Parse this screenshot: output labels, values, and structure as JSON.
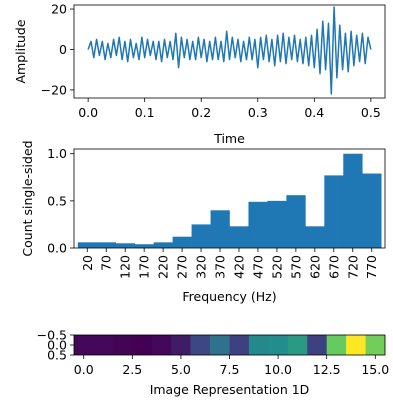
{
  "colors": {
    "line": "#1f77b4",
    "bar": "#1f77b4",
    "axis": "#000000"
  },
  "chart_data": [
    {
      "type": "line",
      "xlabel": "Time",
      "ylabel": "Amplitude",
      "xlim": [
        -0.025,
        0.525
      ],
      "ylim": [
        -24,
        22
      ],
      "xticks": [
        0.0,
        0.1,
        0.2,
        0.3,
        0.4,
        0.5
      ],
      "xtick_labels": [
        "0.0",
        "0.1",
        "0.2",
        "0.3",
        "0.4",
        "0.5"
      ],
      "yticks": [
        -20,
        0,
        20
      ],
      "ytick_labels": [
        "−20",
        "0",
        "20"
      ],
      "series": [
        {
          "x": [
            0.0,
            0.005,
            0.01,
            0.015,
            0.02,
            0.025,
            0.03,
            0.035,
            0.04,
            0.045,
            0.05,
            0.055,
            0.06,
            0.065,
            0.07,
            0.075,
            0.08,
            0.085,
            0.09,
            0.095,
            0.1,
            0.105,
            0.11,
            0.115,
            0.12,
            0.125,
            0.13,
            0.135,
            0.14,
            0.145,
            0.15,
            0.155,
            0.16,
            0.165,
            0.17,
            0.175,
            0.18,
            0.185,
            0.19,
            0.195,
            0.2,
            0.205,
            0.21,
            0.215,
            0.22,
            0.225,
            0.23,
            0.235,
            0.24,
            0.245,
            0.25,
            0.255,
            0.26,
            0.265,
            0.27,
            0.275,
            0.28,
            0.285,
            0.29,
            0.295,
            0.3,
            0.305,
            0.31,
            0.315,
            0.32,
            0.325,
            0.33,
            0.335,
            0.34,
            0.345,
            0.35,
            0.355,
            0.36,
            0.365,
            0.37,
            0.375,
            0.38,
            0.385,
            0.39,
            0.395,
            0.4,
            0.405,
            0.41,
            0.415,
            0.42,
            0.425,
            0.43,
            0.435,
            0.44,
            0.445,
            0.45,
            0.455,
            0.46,
            0.465,
            0.47,
            0.475,
            0.48,
            0.485,
            0.49,
            0.495,
            0.5
          ],
          "y": [
            0,
            4,
            -4,
            5,
            -3,
            4,
            -5,
            3,
            -4,
            5,
            -3,
            6,
            -5,
            4,
            -6,
            5,
            -4,
            3,
            -5,
            6,
            -4,
            5,
            -3,
            4,
            -5,
            4,
            -6,
            5,
            -4,
            4,
            -5,
            8,
            -9,
            6,
            -4,
            5,
            -5,
            4,
            -5,
            6,
            -4,
            5,
            -6,
            4,
            -5,
            6,
            -5,
            4,
            -6,
            9,
            -5,
            6,
            -4,
            5,
            -6,
            4,
            -5,
            6,
            -5,
            5,
            -9,
            6,
            -5,
            7,
            -6,
            5,
            -8,
            7,
            -6,
            8,
            -7,
            6,
            -5,
            7,
            -6,
            5,
            -7,
            6,
            -8,
            7,
            -9,
            10,
            -12,
            14,
            -10,
            13,
            -22,
            21,
            -14,
            12,
            -10,
            8,
            -11,
            9,
            -8,
            7,
            -6,
            8,
            -7,
            6,
            0
          ]
        }
      ]
    },
    {
      "type": "bar",
      "xlabel": "Frequency (Hz)",
      "ylabel": "Count single-sided",
      "ylim": [
        0,
        1.05
      ],
      "yticks": [
        0.0,
        0.5,
        1.0
      ],
      "ytick_labels": [
        "0.0",
        "0.5",
        "1.0"
      ],
      "categories": [
        "20",
        "70",
        "120",
        "170",
        "220",
        "270",
        "320",
        "370",
        "420",
        "470",
        "520",
        "570",
        "620",
        "670",
        "720",
        "770"
      ],
      "values": [
        0.06,
        0.06,
        0.05,
        0.04,
        0.06,
        0.12,
        0.25,
        0.4,
        0.23,
        0.49,
        0.5,
        0.56,
        0.23,
        0.77,
        1.0,
        0.79
      ]
    },
    {
      "type": "heatmap",
      "xlabel": "Image Representation 1D",
      "xlim": [
        -0.5,
        15.5
      ],
      "xticks": [
        0.0,
        2.5,
        5.0,
        7.5,
        10.0,
        12.5,
        15.0
      ],
      "xtick_labels": [
        "0.0",
        "2.5",
        "5.0",
        "7.5",
        "10.0",
        "12.5",
        "15.0"
      ],
      "ylim": [
        0.5,
        -0.5
      ],
      "yticks": [
        -0.5,
        0.0,
        0.5
      ],
      "ytick_labels": [
        "−0.5",
        "0.0",
        "0.5"
      ],
      "values": [
        0.06,
        0.06,
        0.05,
        0.04,
        0.06,
        0.12,
        0.25,
        0.4,
        0.23,
        0.49,
        0.5,
        0.56,
        0.23,
        0.77,
        1.0,
        0.79
      ],
      "colormap": "viridis"
    }
  ]
}
